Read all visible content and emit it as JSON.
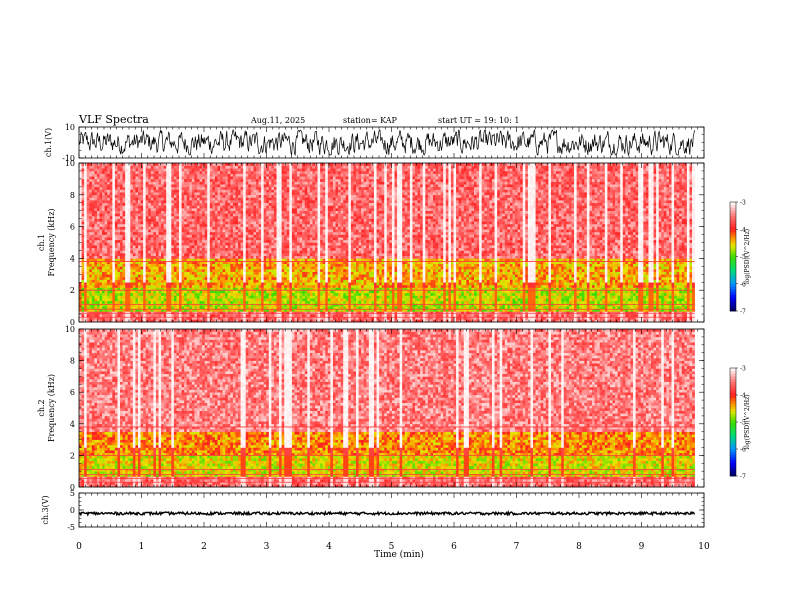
{
  "header": {
    "title": "VLF Spectra",
    "date": "Aug.11, 2025",
    "station": "station= KAP",
    "start": "start  UT  =   19: 10: 1"
  },
  "colors": {
    "spec_low": "#000080",
    "spec_mid": "#00cc44",
    "spec_high": "#ff2020",
    "spec_top": "#ffffff"
  },
  "chart_data": [
    {
      "type": "line",
      "name": "ch1-waveform",
      "ylabel": "ch.1(V)",
      "ylim": [
        -10,
        10
      ],
      "y_ticks": [
        "10",
        "-10"
      ],
      "xlim": [
        0,
        10
      ],
      "amplitude_range": [
        -8,
        8
      ]
    },
    {
      "type": "heatmap",
      "name": "ch1-spectrogram",
      "ylabel": "ch.1\nFrequency  (kHz)",
      "ylabel_lines": [
        "ch.1",
        "Frequency  (kHz)"
      ],
      "ylim": [
        0,
        10
      ],
      "y_ticks": [
        "0",
        "2",
        "4",
        "6",
        "8",
        "10"
      ],
      "xlim": [
        0,
        9.85
      ],
      "colorbar": {
        "label": "log(PSD)(V^2/Hz)",
        "ticks": [
          "-3",
          "-4",
          "-5",
          "-6",
          "-7"
        ],
        "range": [
          -7,
          -3
        ]
      },
      "band_levels_log_psd": [
        {
          "freq": [
            0,
            0.6
          ],
          "level": -3.6
        },
        {
          "freq": [
            0.6,
            2.2
          ],
          "level": -4.7
        },
        {
          "freq": [
            2.2,
            4.0
          ],
          "level": -4.4
        },
        {
          "freq": [
            4.0,
            10
          ],
          "level": -3.6
        }
      ]
    },
    {
      "type": "heatmap",
      "name": "ch2-spectrogram",
      "ylabel": "ch.2\nFrequency  (kHz)",
      "ylabel_lines": [
        "ch.2",
        "Frequency  (kHz)"
      ],
      "ylim": [
        0,
        10
      ],
      "y_ticks": [
        "0",
        "2",
        "4",
        "6",
        "8",
        "10"
      ],
      "xlim": [
        0,
        9.85
      ],
      "colorbar": {
        "label": "log(PSD)(V^2/Hz)",
        "ticks": [
          "-3",
          "-4",
          "-5",
          "-6",
          "-7"
        ],
        "range": [
          -7,
          -3
        ]
      },
      "band_levels_log_psd": [
        {
          "freq": [
            0,
            0.6
          ],
          "level": -3.6
        },
        {
          "freq": [
            0.6,
            2.0
          ],
          "level": -4.6
        },
        {
          "freq": [
            2.0,
            3.5
          ],
          "level": -4.3
        },
        {
          "freq": [
            3.5,
            10
          ],
          "level": -3.5
        }
      ]
    },
    {
      "type": "line",
      "name": "ch3-waveform",
      "ylabel": "ch.3(V)",
      "ylim": [
        -5,
        5
      ],
      "y_ticks": [
        "5",
        "0",
        "-5"
      ],
      "xlim": [
        0,
        10
      ],
      "level": -1,
      "amplitude_range": [
        -1.4,
        -0.6
      ]
    }
  ],
  "x_axis": {
    "label": "Time  (min)",
    "ticks": [
      "0",
      "1",
      "2",
      "3",
      "4",
      "5",
      "6",
      "7",
      "8",
      "9",
      "10"
    ],
    "range": [
      0,
      10
    ]
  }
}
